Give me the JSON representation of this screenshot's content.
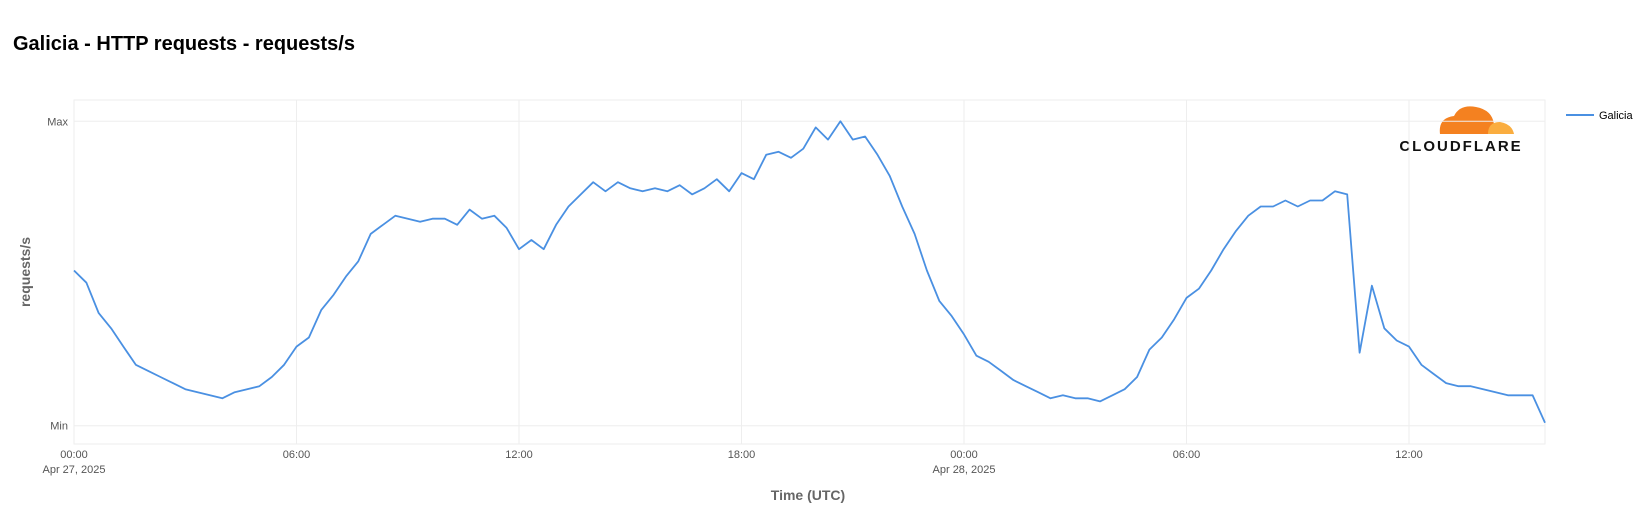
{
  "chart_data": {
    "type": "line",
    "title": "Galicia - HTTP requests - requests/s",
    "logo": "CLOUDFLARE",
    "xlabel": "Time (UTC)",
    "ylabel": "requests/s",
    "xlim": [
      "2025-04-27 00:00",
      "2025-04-28 15:40"
    ],
    "ylim": [
      -0.06,
      1.07
    ],
    "yticks": [
      {
        "value": 0,
        "label": "Min"
      },
      {
        "value": 1,
        "label": "Max"
      }
    ],
    "xticks": [
      {
        "value": "2025-04-27 00:00",
        "label": "00:00",
        "date": "Apr 27, 2025"
      },
      {
        "value": "2025-04-27 06:00",
        "label": "06:00"
      },
      {
        "value": "2025-04-27 12:00",
        "label": "12:00"
      },
      {
        "value": "2025-04-27 18:00",
        "label": "18:00"
      },
      {
        "value": "2025-04-28 00:00",
        "label": "00:00",
        "date": "Apr 28, 2025"
      },
      {
        "value": "2025-04-28 06:00",
        "label": "06:00"
      },
      {
        "value": "2025-04-28 12:00",
        "label": "12:00"
      }
    ],
    "grid": true,
    "legend": "top-right",
    "x": [
      "2025-04-27 00:00",
      "2025-04-27 00:20",
      "2025-04-27 00:40",
      "2025-04-27 01:00",
      "2025-04-27 01:20",
      "2025-04-27 01:40",
      "2025-04-27 02:00",
      "2025-04-27 02:20",
      "2025-04-27 02:40",
      "2025-04-27 03:00",
      "2025-04-27 03:20",
      "2025-04-27 03:40",
      "2025-04-27 04:00",
      "2025-04-27 04:20",
      "2025-04-27 04:40",
      "2025-04-27 05:00",
      "2025-04-27 05:20",
      "2025-04-27 05:40",
      "2025-04-27 06:00",
      "2025-04-27 06:20",
      "2025-04-27 06:40",
      "2025-04-27 07:00",
      "2025-04-27 07:20",
      "2025-04-27 07:40",
      "2025-04-27 08:00",
      "2025-04-27 08:20",
      "2025-04-27 08:40",
      "2025-04-27 09:00",
      "2025-04-27 09:20",
      "2025-04-27 09:40",
      "2025-04-27 10:00",
      "2025-04-27 10:20",
      "2025-04-27 10:40",
      "2025-04-27 11:00",
      "2025-04-27 11:20",
      "2025-04-27 11:40",
      "2025-04-27 12:00",
      "2025-04-27 12:20",
      "2025-04-27 12:40",
      "2025-04-27 13:00",
      "2025-04-27 13:20",
      "2025-04-27 13:40",
      "2025-04-27 14:00",
      "2025-04-27 14:20",
      "2025-04-27 14:40",
      "2025-04-27 15:00",
      "2025-04-27 15:20",
      "2025-04-27 15:40",
      "2025-04-27 16:00",
      "2025-04-27 16:20",
      "2025-04-27 16:40",
      "2025-04-27 17:00",
      "2025-04-27 17:20",
      "2025-04-27 17:40",
      "2025-04-27 18:00",
      "2025-04-27 18:20",
      "2025-04-27 18:40",
      "2025-04-27 19:00",
      "2025-04-27 19:20",
      "2025-04-27 19:40",
      "2025-04-27 20:00",
      "2025-04-27 20:20",
      "2025-04-27 20:40",
      "2025-04-27 21:00",
      "2025-04-27 21:20",
      "2025-04-27 21:40",
      "2025-04-27 22:00",
      "2025-04-27 22:20",
      "2025-04-27 22:40",
      "2025-04-27 23:00",
      "2025-04-27 23:20",
      "2025-04-27 23:40",
      "2025-04-28 00:00",
      "2025-04-28 00:20",
      "2025-04-28 00:40",
      "2025-04-28 01:00",
      "2025-04-28 01:20",
      "2025-04-28 01:40",
      "2025-04-28 02:00",
      "2025-04-28 02:20",
      "2025-04-28 02:40",
      "2025-04-28 03:00",
      "2025-04-28 03:20",
      "2025-04-28 03:40",
      "2025-04-28 04:00",
      "2025-04-28 04:20",
      "2025-04-28 04:40",
      "2025-04-28 05:00",
      "2025-04-28 05:20",
      "2025-04-28 05:40",
      "2025-04-28 06:00",
      "2025-04-28 06:20",
      "2025-04-28 06:40",
      "2025-04-28 07:00",
      "2025-04-28 07:20",
      "2025-04-28 07:40",
      "2025-04-28 08:00",
      "2025-04-28 08:20",
      "2025-04-28 08:40",
      "2025-04-28 09:00",
      "2025-04-28 09:20",
      "2025-04-28 09:40",
      "2025-04-28 10:00",
      "2025-04-28 10:20",
      "2025-04-28 10:40",
      "2025-04-28 11:00",
      "2025-04-28 11:20",
      "2025-04-28 11:40",
      "2025-04-28 12:00",
      "2025-04-28 12:20",
      "2025-04-28 12:40",
      "2025-04-28 13:00",
      "2025-04-28 13:20",
      "2025-04-28 13:40",
      "2025-04-28 14:00",
      "2025-04-28 14:20",
      "2025-04-28 14:40",
      "2025-04-28 15:00",
      "2025-04-28 15:20",
      "2025-04-28 15:40"
    ],
    "series": [
      {
        "name": "Galicia",
        "color": "#4a90e2",
        "values": [
          0.51,
          0.47,
          0.37,
          0.32,
          0.26,
          0.2,
          0.18,
          0.16,
          0.14,
          0.12,
          0.11,
          0.1,
          0.09,
          0.11,
          0.12,
          0.13,
          0.16,
          0.2,
          0.26,
          0.29,
          0.38,
          0.43,
          0.49,
          0.54,
          0.63,
          0.66,
          0.69,
          0.68,
          0.67,
          0.68,
          0.68,
          0.66,
          0.71,
          0.68,
          0.69,
          0.65,
          0.58,
          0.61,
          0.58,
          0.66,
          0.72,
          0.76,
          0.8,
          0.77,
          0.8,
          0.78,
          0.77,
          0.78,
          0.77,
          0.79,
          0.76,
          0.78,
          0.81,
          0.77,
          0.83,
          0.81,
          0.89,
          0.9,
          0.88,
          0.91,
          0.98,
          0.94,
          1.0,
          0.94,
          0.95,
          0.89,
          0.82,
          0.72,
          0.63,
          0.51,
          0.41,
          0.36,
          0.3,
          0.23,
          0.21,
          0.18,
          0.15,
          0.13,
          0.11,
          0.09,
          0.1,
          0.09,
          0.09,
          0.08,
          0.1,
          0.12,
          0.16,
          0.25,
          0.29,
          0.35,
          0.42,
          0.45,
          0.51,
          0.58,
          0.64,
          0.69,
          0.72,
          0.72,
          0.74,
          0.72,
          0.74,
          0.74,
          0.77,
          0.76,
          0.24,
          0.46,
          0.32,
          0.28,
          0.26,
          0.2,
          0.17,
          0.14,
          0.13,
          0.13,
          0.12,
          0.11,
          0.1,
          0.1,
          0.1,
          0.01
        ]
      }
    ]
  }
}
